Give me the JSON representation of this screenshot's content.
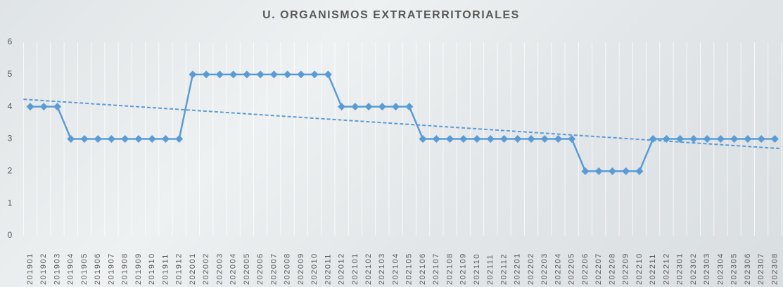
{
  "chart_data": {
    "type": "line",
    "title": "U. ORGANISMOS EXTRATERRITORIALES",
    "categories": [
      "201901",
      "201902",
      "201903",
      "201904",
      "201905",
      "201906",
      "201907",
      "201908",
      "201909",
      "201910",
      "201911",
      "201912",
      "202001",
      "202002",
      "202003",
      "202004",
      "202005",
      "202006",
      "202007",
      "202008",
      "202009",
      "202010",
      "202011",
      "202012",
      "202101",
      "202102",
      "202103",
      "202104",
      "202105",
      "202106",
      "202107",
      "202108",
      "202109",
      "202110",
      "202111",
      "202112",
      "202201",
      "202202",
      "202203",
      "202204",
      "202205",
      "202206",
      "202207",
      "202208",
      "202209",
      "202210",
      "202211",
      "202212",
      "202301",
      "202302",
      "202303",
      "202304",
      "202305",
      "202306",
      "202307",
      "202308"
    ],
    "values": [
      4,
      4,
      4,
      3,
      3,
      3,
      3,
      3,
      3,
      3,
      3,
      3,
      5,
      5,
      5,
      5,
      5,
      5,
      5,
      5,
      5,
      5,
      5,
      4,
      4,
      4,
      4,
      4,
      4,
      3,
      3,
      3,
      3,
      3,
      3,
      3,
      3,
      3,
      3,
      3,
      3,
      2,
      2,
      2,
      2,
      2,
      3,
      3,
      3,
      3,
      3,
      3,
      3,
      3,
      3,
      3
    ],
    "color": "#5b9bd5",
    "marker": "diamond",
    "trendline": "linear",
    "ylim": [
      0,
      6
    ],
    "yticks": [
      0,
      1,
      2,
      3,
      4,
      5,
      6
    ],
    "grid": "x"
  }
}
